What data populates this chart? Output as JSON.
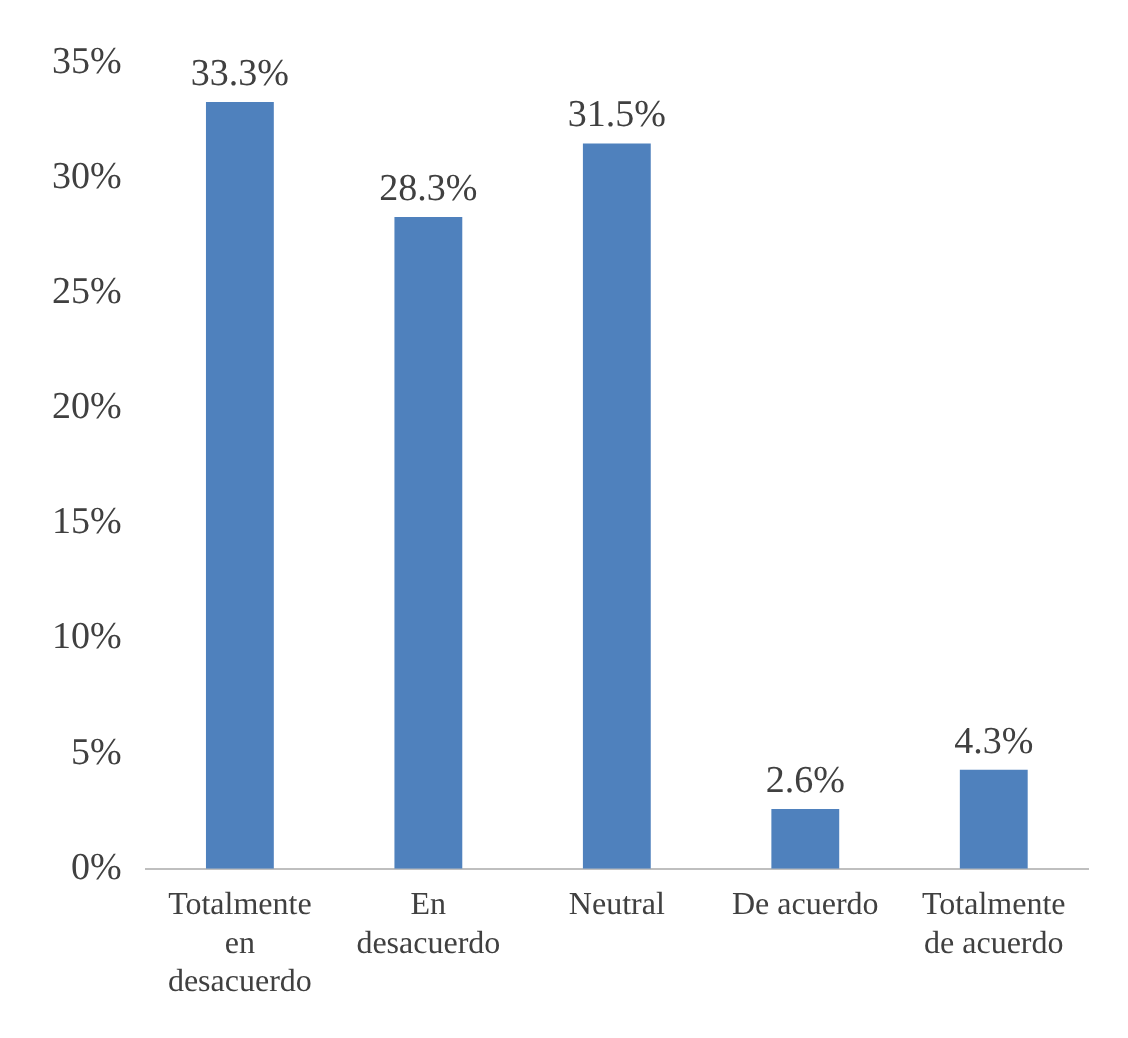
{
  "chart_data": {
    "type": "bar",
    "categories": [
      "Totalmente en desacuerdo",
      "En desacuerdo",
      "Neutral",
      "De acuerdo",
      "Totalmente de acuerdo"
    ],
    "values": [
      33.3,
      28.3,
      31.5,
      2.6,
      4.3
    ],
    "value_labels": [
      "33.3%",
      "28.3%",
      "31.5%",
      "2.6%",
      "4.3%"
    ],
    "color": "#4f81bd",
    "ylim": [
      0,
      35
    ],
    "yticks": [
      {
        "value": 0,
        "label": "0%"
      },
      {
        "value": 5,
        "label": "5%"
      },
      {
        "value": 10,
        "label": "10%"
      },
      {
        "value": 15,
        "label": "15%"
      },
      {
        "value": 20,
        "label": "20%"
      },
      {
        "value": 25,
        "label": "25%"
      },
      {
        "value": 30,
        "label": "30%"
      },
      {
        "value": 35,
        "label": "35%"
      }
    ],
    "grid": false,
    "legend": false
  }
}
